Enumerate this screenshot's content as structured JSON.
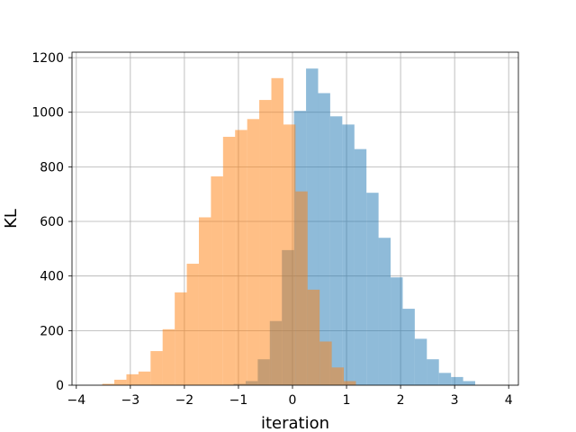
{
  "chart_data": {
    "type": "bar",
    "title": "",
    "xlabel": "iteration",
    "ylabel": "KL",
    "xlim": [
      -4.08,
      4.18
    ],
    "ylim": [
      0,
      1220
    ],
    "grid": true,
    "legend": "none",
    "x_ticks": [
      -4,
      -3,
      -2,
      -1,
      0,
      1,
      2,
      3,
      4
    ],
    "x_tick_labels": [
      "−4",
      "−3",
      "−2",
      "−1",
      "0",
      "1",
      "2",
      "3",
      "4"
    ],
    "y_ticks": [
      0,
      200,
      400,
      600,
      800,
      1000,
      1200
    ],
    "y_tick_labels": [
      "0",
      "200",
      "400",
      "600",
      "800",
      "1000",
      "1200"
    ],
    "series": [
      {
        "color": "#1f77b4",
        "alpha": 0.5,
        "bin_width": 0.2235,
        "bins_left": [
          -1.09,
          -0.867,
          -0.643,
          -0.42,
          -0.196,
          0.027,
          0.251,
          0.474,
          0.698,
          0.922,
          1.145,
          1.369,
          1.592,
          1.816,
          2.039,
          2.263,
          2.486,
          2.71,
          2.934,
          3.157
        ],
        "values": [
          5,
          15,
          95,
          235,
          495,
          1005,
          1160,
          1070,
          985,
          955,
          865,
          705,
          540,
          395,
          280,
          170,
          95,
          45,
          30,
          15
        ]
      },
      {
        "color": "#ff7f0e",
        "alpha": 0.5,
        "bin_width": 0.2235,
        "bins_left": [
          -3.52,
          -3.297,
          -3.073,
          -2.85,
          -2.626,
          -2.403,
          -2.179,
          -1.956,
          -1.732,
          -1.509,
          -1.285,
          -1.062,
          -0.838,
          -0.615,
          -0.391,
          -0.168,
          0.056,
          0.279,
          0.503,
          0.726,
          0.95
        ],
        "values": [
          5,
          20,
          40,
          50,
          125,
          205,
          340,
          445,
          615,
          765,
          910,
          935,
          975,
          1045,
          1125,
          955,
          710,
          350,
          160,
          65,
          15
        ]
      }
    ]
  }
}
